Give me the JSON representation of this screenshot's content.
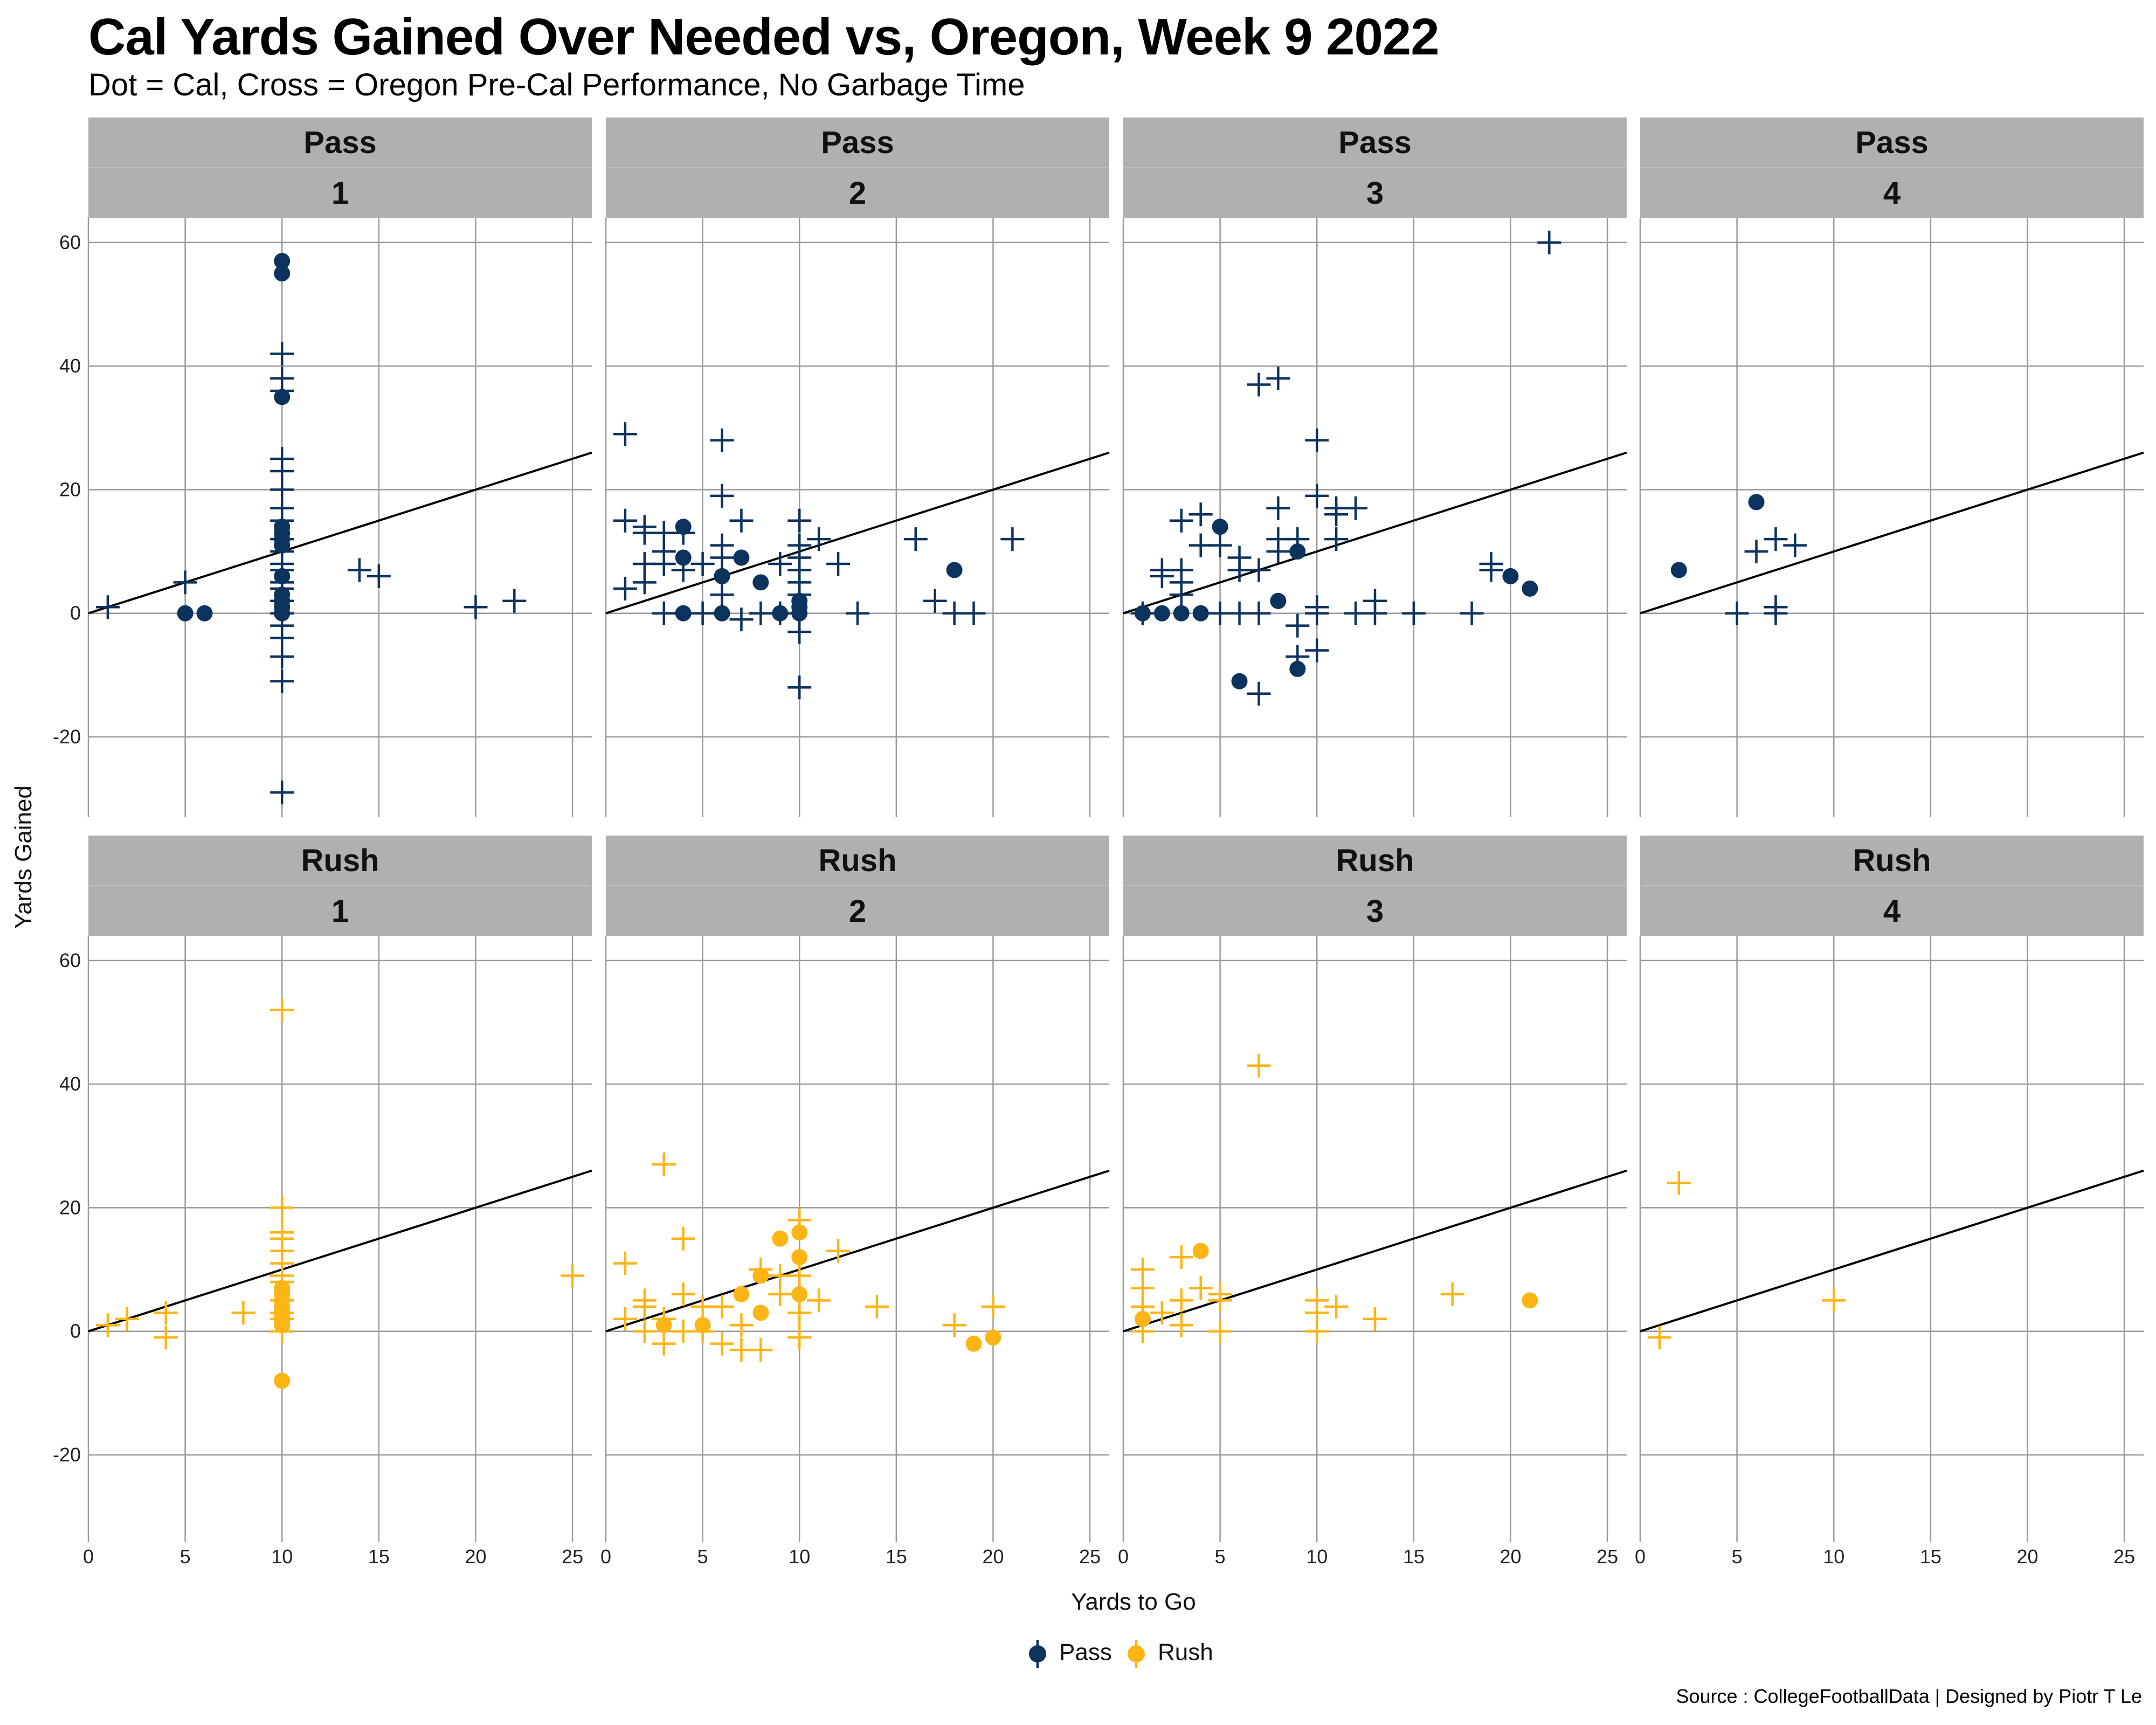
{
  "title": "Cal Yards Gained Over Needed vs, Oregon, Week 9 2022",
  "subtitle": "Dot = Cal, Cross = Oregon Pre-Cal Performance, No Garbage Time",
  "caption": "Source : CollegeFootballData | Designed by Piotr T Le",
  "colors": {
    "pass": "#0c325e",
    "rush": "#fdb515",
    "strip": "#b0b0b0",
    "grid": "#9a9a9a",
    "reference": "#000000"
  },
  "chart_data": {
    "type": "scatter",
    "facet_rows": [
      "Pass",
      "Rush"
    ],
    "facet_cols": [
      "1",
      "2",
      "3",
      "4"
    ],
    "xlabel": "Yards to Go",
    "ylabel": "Yards Gained",
    "xlim": [
      0,
      26
    ],
    "ylim": [
      -33,
      64
    ],
    "x_ticks": [
      0,
      5,
      10,
      15,
      20,
      25
    ],
    "y_ticks": [
      -20,
      0,
      20,
      40,
      60
    ],
    "reference_line": {
      "label": "y = x",
      "slope": 1,
      "intercept": 0
    },
    "legend": [
      {
        "label": "Pass",
        "key": "pass"
      },
      {
        "label": "Rush",
        "key": "rush"
      }
    ],
    "series": [
      {
        "name": "Cal",
        "marker": "dot"
      },
      {
        "name": "Oregon Pre-Cal",
        "marker": "cross"
      }
    ],
    "panels": [
      {
        "type": "Pass",
        "down": "1",
        "cal": [
          [
            5,
            0
          ],
          [
            6,
            0
          ],
          [
            10,
            57
          ],
          [
            10,
            55
          ],
          [
            10,
            35
          ],
          [
            10,
            14
          ],
          [
            10,
            13
          ],
          [
            10,
            12
          ],
          [
            10,
            11
          ],
          [
            10,
            6
          ],
          [
            10,
            3
          ],
          [
            10,
            2
          ],
          [
            10,
            1
          ],
          [
            10,
            0
          ]
        ],
        "oregon": [
          [
            1,
            1
          ],
          [
            5,
            5
          ],
          [
            10,
            42
          ],
          [
            10,
            38
          ],
          [
            10,
            36
          ],
          [
            10,
            25
          ],
          [
            10,
            23
          ],
          [
            10,
            20
          ],
          [
            10,
            17
          ],
          [
            10,
            15
          ],
          [
            10,
            12
          ],
          [
            10,
            10
          ],
          [
            10,
            8
          ],
          [
            10,
            7
          ],
          [
            10,
            5
          ],
          [
            10,
            4
          ],
          [
            10,
            2
          ],
          [
            10,
            0
          ],
          [
            10,
            -2
          ],
          [
            10,
            -4
          ],
          [
            10,
            -7
          ],
          [
            10,
            -11
          ],
          [
            10,
            -29
          ],
          [
            14,
            7
          ],
          [
            15,
            6
          ],
          [
            20,
            1
          ],
          [
            22,
            2
          ]
        ]
      },
      {
        "type": "Pass",
        "down": "2",
        "cal": [
          [
            4,
            14
          ],
          [
            4,
            9
          ],
          [
            4,
            0
          ],
          [
            6,
            6
          ],
          [
            6,
            0
          ],
          [
            7,
            9
          ],
          [
            8,
            5
          ],
          [
            9,
            0
          ],
          [
            10,
            2
          ],
          [
            10,
            1
          ],
          [
            10,
            0
          ],
          [
            18,
            7
          ]
        ],
        "oregon": [
          [
            1,
            29
          ],
          [
            1,
            15
          ],
          [
            1,
            4
          ],
          [
            2,
            14
          ],
          [
            2,
            13
          ],
          [
            2,
            8
          ],
          [
            2,
            5
          ],
          [
            3,
            13
          ],
          [
            3,
            10
          ],
          [
            3,
            8
          ],
          [
            3,
            0
          ],
          [
            4,
            13
          ],
          [
            4,
            7
          ],
          [
            5,
            0
          ],
          [
            5,
            8
          ],
          [
            6,
            28
          ],
          [
            6,
            19
          ],
          [
            6,
            11
          ],
          [
            6,
            9
          ],
          [
            6,
            3
          ],
          [
            7,
            15
          ],
          [
            7,
            -1
          ],
          [
            8,
            0
          ],
          [
            9,
            8
          ],
          [
            9,
            0
          ],
          [
            10,
            15
          ],
          [
            10,
            11
          ],
          [
            10,
            9
          ],
          [
            10,
            7
          ],
          [
            10,
            5
          ],
          [
            10,
            3
          ],
          [
            10,
            -3
          ],
          [
            10,
            -12
          ],
          [
            11,
            12
          ],
          [
            12,
            8
          ],
          [
            13,
            0
          ],
          [
            16,
            12
          ],
          [
            17,
            2
          ],
          [
            18,
            0
          ],
          [
            19,
            0
          ],
          [
            21,
            12
          ]
        ]
      },
      {
        "type": "Pass",
        "down": "3",
        "cal": [
          [
            1,
            0
          ],
          [
            2,
            0
          ],
          [
            3,
            0
          ],
          [
            4,
            0
          ],
          [
            5,
            14
          ],
          [
            6,
            -11
          ],
          [
            8,
            2
          ],
          [
            9,
            10
          ],
          [
            9,
            -9
          ],
          [
            20,
            6
          ],
          [
            21,
            4
          ]
        ],
        "oregon": [
          [
            1,
            0
          ],
          [
            2,
            7
          ],
          [
            2,
            6
          ],
          [
            3,
            15
          ],
          [
            3,
            7
          ],
          [
            3,
            5
          ],
          [
            3,
            3
          ],
          [
            4,
            16
          ],
          [
            4,
            11
          ],
          [
            5,
            11
          ],
          [
            5,
            0
          ],
          [
            6,
            9
          ],
          [
            6,
            7
          ],
          [
            6,
            0
          ],
          [
            7,
            37
          ],
          [
            7,
            7
          ],
          [
            7,
            0
          ],
          [
            7,
            -13
          ],
          [
            8,
            38
          ],
          [
            8,
            17
          ],
          [
            8,
            12
          ],
          [
            8,
            10
          ],
          [
            9,
            12
          ],
          [
            9,
            -2
          ],
          [
            9,
            -7
          ],
          [
            10,
            28
          ],
          [
            10,
            19
          ],
          [
            10,
            1
          ],
          [
            10,
            0
          ],
          [
            10,
            -6
          ],
          [
            11,
            17
          ],
          [
            11,
            16
          ],
          [
            11,
            12
          ],
          [
            12,
            17
          ],
          [
            12,
            0
          ],
          [
            13,
            2
          ],
          [
            13,
            0
          ],
          [
            15,
            0
          ],
          [
            18,
            0
          ],
          [
            19,
            8
          ],
          [
            19,
            7
          ],
          [
            22,
            60
          ]
        ]
      },
      {
        "type": "Pass",
        "down": "4",
        "cal": [
          [
            2,
            7
          ],
          [
            6,
            18
          ]
        ],
        "oregon": [
          [
            5,
            0
          ],
          [
            6,
            10
          ],
          [
            7,
            12
          ],
          [
            7,
            1
          ],
          [
            7,
            0
          ],
          [
            8,
            11
          ]
        ]
      },
      {
        "type": "Rush",
        "down": "1",
        "cal": [
          [
            10,
            7
          ],
          [
            10,
            6
          ],
          [
            10,
            5
          ],
          [
            10,
            4
          ],
          [
            10,
            3
          ],
          [
            10,
            2
          ],
          [
            10,
            1
          ],
          [
            10,
            -8
          ]
        ],
        "oregon": [
          [
            1,
            1
          ],
          [
            2,
            2
          ],
          [
            4,
            3
          ],
          [
            4,
            -1
          ],
          [
            8,
            3
          ],
          [
            10,
            52
          ],
          [
            10,
            20
          ],
          [
            10,
            16
          ],
          [
            10,
            15
          ],
          [
            10,
            13
          ],
          [
            10,
            11
          ],
          [
            10,
            9
          ],
          [
            10,
            8
          ],
          [
            10,
            5
          ],
          [
            10,
            3
          ],
          [
            10,
            2
          ],
          [
            10,
            0
          ],
          [
            25,
            9
          ]
        ]
      },
      {
        "type": "Rush",
        "down": "2",
        "cal": [
          [
            3,
            1
          ],
          [
            5,
            1
          ],
          [
            7,
            6
          ],
          [
            8,
            9
          ],
          [
            8,
            3
          ],
          [
            9,
            15
          ],
          [
            10,
            16
          ],
          [
            10,
            12
          ],
          [
            10,
            6
          ],
          [
            19,
            -2
          ],
          [
            20,
            -1
          ]
        ],
        "oregon": [
          [
            1,
            11
          ],
          [
            1,
            2
          ],
          [
            2,
            5
          ],
          [
            2,
            4
          ],
          [
            2,
            0
          ],
          [
            3,
            27
          ],
          [
            3,
            2
          ],
          [
            3,
            -2
          ],
          [
            4,
            15
          ],
          [
            4,
            6
          ],
          [
            4,
            0
          ],
          [
            5,
            4
          ],
          [
            5,
            0
          ],
          [
            6,
            4
          ],
          [
            6,
            -2
          ],
          [
            7,
            1
          ],
          [
            7,
            -3
          ],
          [
            8,
            10
          ],
          [
            8,
            -3
          ],
          [
            9,
            9
          ],
          [
            9,
            6
          ],
          [
            10,
            18
          ],
          [
            10,
            9
          ],
          [
            10,
            3
          ],
          [
            10,
            -1
          ],
          [
            11,
            5
          ],
          [
            12,
            13
          ],
          [
            14,
            4
          ],
          [
            18,
            1
          ],
          [
            20,
            4
          ]
        ]
      },
      {
        "type": "Rush",
        "down": "3",
        "cal": [
          [
            1,
            2
          ],
          [
            4,
            13
          ],
          [
            21,
            5
          ]
        ],
        "oregon": [
          [
            1,
            10
          ],
          [
            1,
            7
          ],
          [
            1,
            4
          ],
          [
            1,
            0
          ],
          [
            2,
            3
          ],
          [
            3,
            12
          ],
          [
            3,
            5
          ],
          [
            3,
            1
          ],
          [
            4,
            7
          ],
          [
            5,
            6
          ],
          [
            5,
            5
          ],
          [
            5,
            0
          ],
          [
            7,
            43
          ],
          [
            10,
            5
          ],
          [
            10,
            3
          ],
          [
            10,
            0
          ],
          [
            11,
            4
          ],
          [
            13,
            2
          ],
          [
            17,
            6
          ]
        ]
      },
      {
        "type": "Rush",
        "down": "4",
        "cal": [],
        "oregon": [
          [
            1,
            -1
          ],
          [
            2,
            24
          ],
          [
            10,
            5
          ]
        ]
      }
    ]
  }
}
